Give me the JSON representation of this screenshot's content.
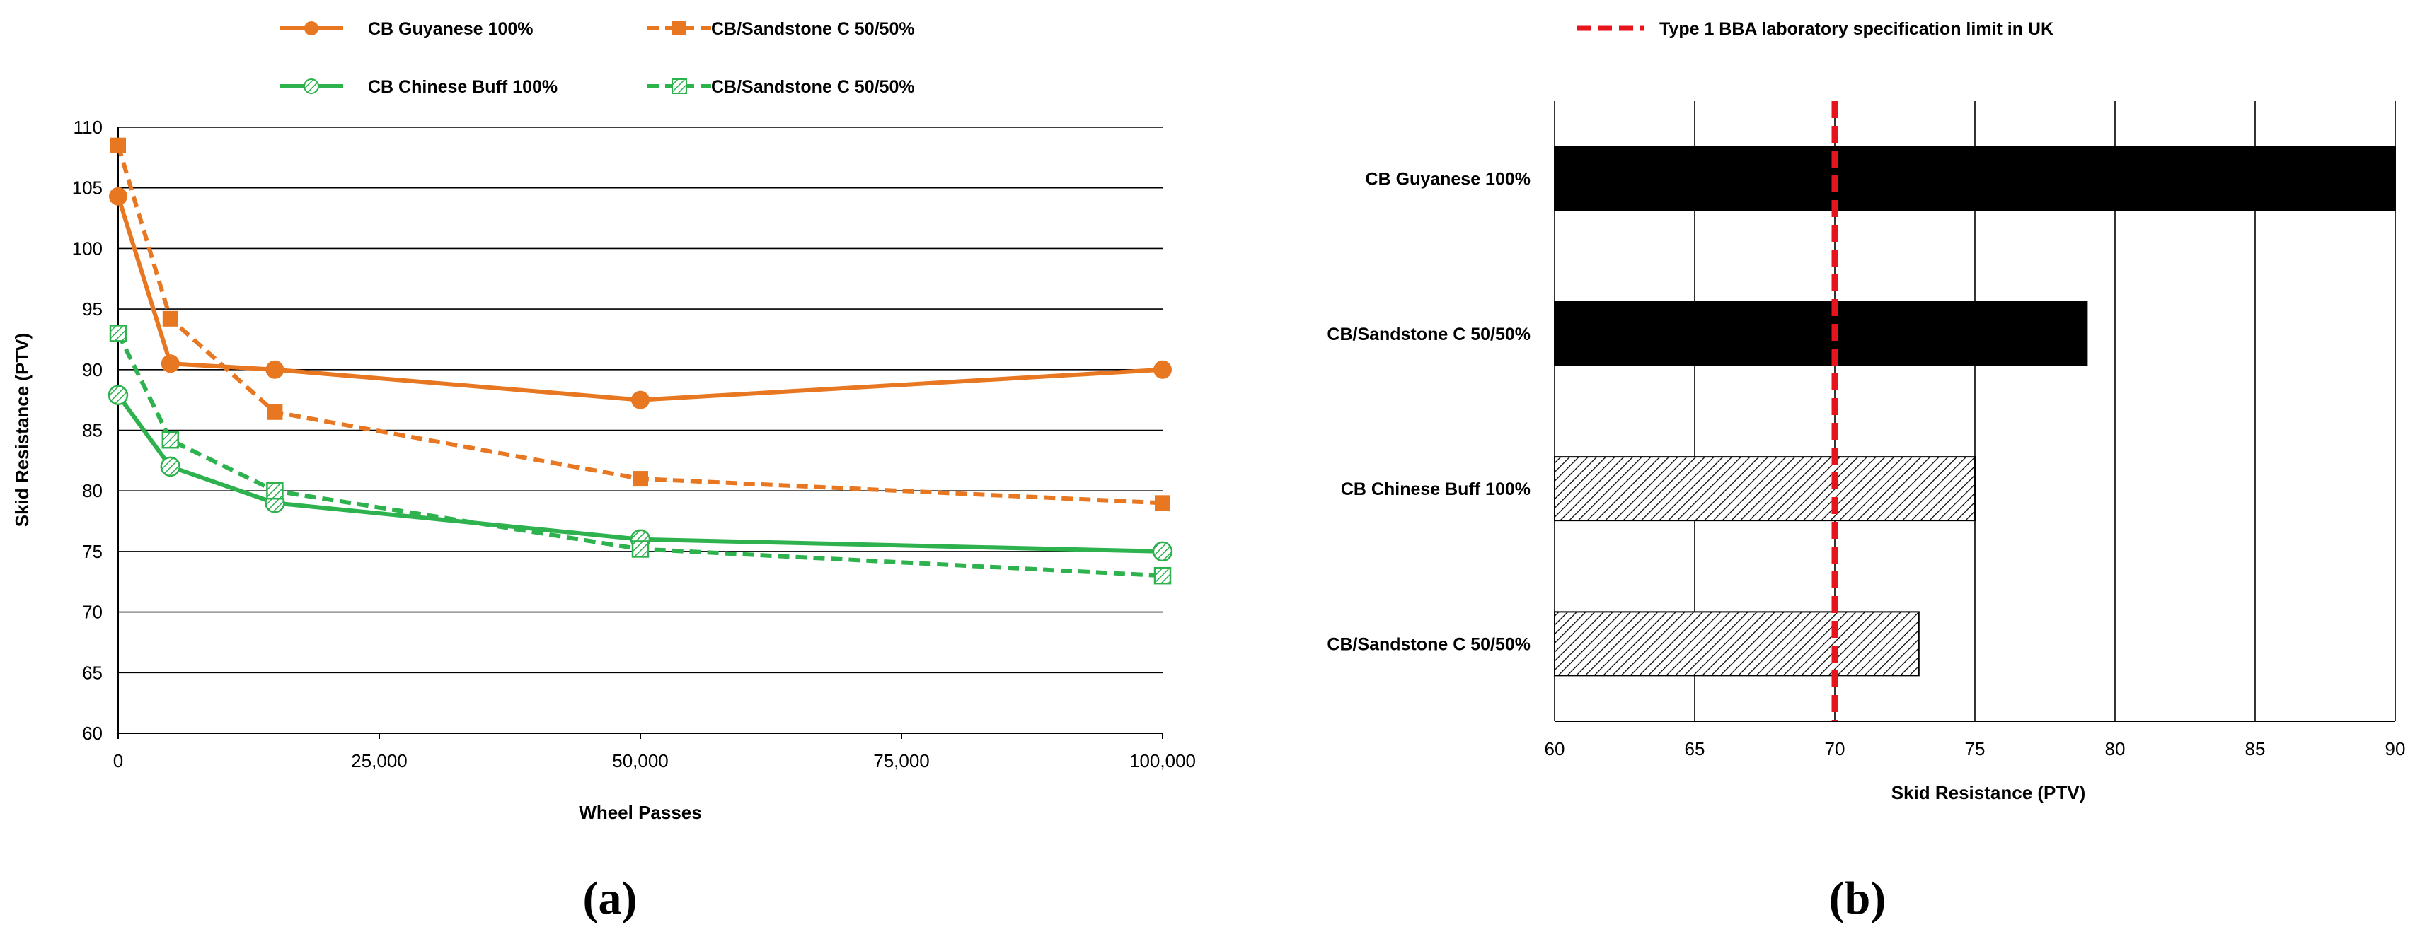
{
  "colors": {
    "orange": "#E87722",
    "green": "#2DB24E",
    "red": "#E8141C",
    "black": "#000000",
    "grid": "#000000"
  },
  "chart_data": [
    {
      "type": "line",
      "panel_label": "(a)",
      "xlabel": "Wheel Passes",
      "ylabel": "Skid Resistance (PTV)",
      "xlim": [
        0,
        100000
      ],
      "ylim": [
        60,
        110
      ],
      "x_ticks": [
        0,
        25000,
        50000,
        75000,
        100000
      ],
      "x_tick_labels": [
        "0",
        "25,000",
        "50,000",
        "75,000",
        "100,000"
      ],
      "y_ticks": [
        60,
        65,
        70,
        75,
        80,
        85,
        90,
        95,
        100,
        105,
        110
      ],
      "y_tick_labels": [
        "60",
        "65",
        "70",
        "75",
        "80",
        "85",
        "90",
        "95",
        "100",
        "105",
        "110"
      ],
      "grid": "horizontal",
      "legend_position": "top",
      "series": [
        {
          "name": "CB Guyanese 100%",
          "color": "orange",
          "dash": false,
          "marker": "circle",
          "x": [
            0,
            5000,
            15000,
            50000,
            100000
          ],
          "values": [
            104.3,
            90.5,
            90.0,
            87.5,
            90.0
          ]
        },
        {
          "name": "CB/Sandstone C 50/50%",
          "color": "orange",
          "dash": true,
          "marker": "square",
          "x": [
            0,
            5000,
            15000,
            50000,
            100000
          ],
          "values": [
            108.5,
            94.2,
            86.5,
            81.0,
            79.0
          ]
        },
        {
          "name": "CB Chinese Buff 100%",
          "color": "green",
          "dash": false,
          "marker": "hatched-circle",
          "x": [
            0,
            5000,
            15000,
            50000,
            100000
          ],
          "values": [
            87.9,
            82.0,
            79.0,
            76.0,
            75.0
          ]
        },
        {
          "name": "CB/Sandstone C 50/50%",
          "color": "green",
          "dash": true,
          "marker": "hatched-square",
          "x": [
            0,
            5000,
            15000,
            50000,
            100000
          ],
          "values": [
            93.0,
            84.2,
            80.0,
            75.2,
            73.0
          ]
        }
      ]
    },
    {
      "type": "bar",
      "orientation": "horizontal",
      "panel_label": "(b)",
      "xlabel": "Skid Resistance (PTV)",
      "xlim": [
        60,
        90
      ],
      "x_ticks": [
        60,
        65,
        70,
        75,
        80,
        85,
        90
      ],
      "x_tick_labels": [
        "60",
        "65",
        "70",
        "75",
        "80",
        "85",
        "90"
      ],
      "grid": "vertical",
      "legend_position": "top",
      "categories": [
        "CB Guyanese 100%",
        "CB/Sandstone C 50/50%",
        "CB Chinese Buff 100%",
        "CB/Sandstone C 50/50%"
      ],
      "values": [
        90,
        79,
        75,
        73
      ],
      "fills": [
        "solid",
        "solid",
        "hatched",
        "hatched"
      ],
      "reference_line": {
        "name": "Type 1 BBA laboratory specification limit in UK",
        "value": 70,
        "color": "red",
        "dash": true
      }
    }
  ]
}
